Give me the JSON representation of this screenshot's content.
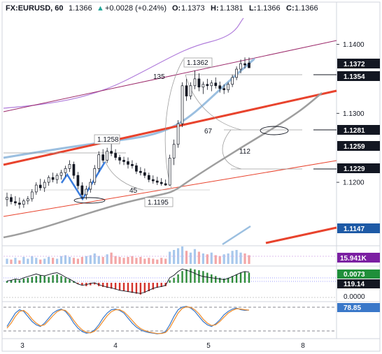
{
  "header": {
    "symbol": "FX:EURUSD, 60",
    "last": "1.1366",
    "change": "+0.0028 (+0.24%)",
    "open_label": "O:",
    "open": "1.1373",
    "high_label": "H:",
    "high": "1.1381",
    "low_label": "L:",
    "low": "1.1366",
    "close_label": "C:",
    "close": "1.1366"
  },
  "chart_data": [
    {
      "type": "candlestick",
      "panel": "price",
      "x_ticks": [
        "3",
        "4",
        "5",
        "8"
      ],
      "y_ticks": [
        1.12,
        1.13,
        1.14
      ],
      "ylim": [
        1.111,
        1.1442
      ],
      "candles": [
        {
          "o": 1.1175,
          "h": 1.1185,
          "l": 1.1165,
          "c": 1.1178
        },
        {
          "o": 1.1178,
          "h": 1.1183,
          "l": 1.1168,
          "c": 1.1172
        },
        {
          "o": 1.1172,
          "h": 1.118,
          "l": 1.1166,
          "c": 1.117
        },
        {
          "o": 1.117,
          "h": 1.1178,
          "l": 1.1162,
          "c": 1.1168
        },
        {
          "o": 1.1168,
          "h": 1.1176,
          "l": 1.1163,
          "c": 1.1173
        },
        {
          "o": 1.1173,
          "h": 1.118,
          "l": 1.1168,
          "c": 1.1176
        },
        {
          "o": 1.1176,
          "h": 1.119,
          "l": 1.1172,
          "c": 1.1186
        },
        {
          "o": 1.1186,
          "h": 1.12,
          "l": 1.1182,
          "c": 1.1196
        },
        {
          "o": 1.1196,
          "h": 1.1205,
          "l": 1.1188,
          "c": 1.1192
        },
        {
          "o": 1.1192,
          "h": 1.1204,
          "l": 1.1186,
          "c": 1.12
        },
        {
          "o": 1.12,
          "h": 1.121,
          "l": 1.1195,
          "c": 1.1207
        },
        {
          "o": 1.1207,
          "h": 1.1214,
          "l": 1.12,
          "c": 1.1204
        },
        {
          "o": 1.1204,
          "h": 1.1213,
          "l": 1.1198,
          "c": 1.121
        },
        {
          "o": 1.121,
          "h": 1.1218,
          "l": 1.1204,
          "c": 1.1214
        },
        {
          "o": 1.1214,
          "h": 1.1224,
          "l": 1.1208,
          "c": 1.122
        },
        {
          "o": 1.122,
          "h": 1.1232,
          "l": 1.1215,
          "c": 1.1226
        },
        {
          "o": 1.1226,
          "h": 1.123,
          "l": 1.1205,
          "c": 1.121
        },
        {
          "o": 1.121,
          "h": 1.1215,
          "l": 1.119,
          "c": 1.1195
        },
        {
          "o": 1.1195,
          "h": 1.12,
          "l": 1.1176,
          "c": 1.1182
        },
        {
          "o": 1.1182,
          "h": 1.1195,
          "l": 1.1175,
          "c": 1.119
        },
        {
          "o": 1.119,
          "h": 1.1205,
          "l": 1.1185,
          "c": 1.12
        },
        {
          "o": 1.12,
          "h": 1.1225,
          "l": 1.1196,
          "c": 1.122
        },
        {
          "o": 1.122,
          "h": 1.1245,
          "l": 1.1215,
          "c": 1.124
        },
        {
          "o": 1.124,
          "h": 1.1248,
          "l": 1.1228,
          "c": 1.1232
        },
        {
          "o": 1.1232,
          "h": 1.125,
          "l": 1.1228,
          "c": 1.1245
        },
        {
          "o": 1.1245,
          "h": 1.1258,
          "l": 1.1238,
          "c": 1.1242
        },
        {
          "o": 1.1242,
          "h": 1.1248,
          "l": 1.1232,
          "c": 1.1236
        },
        {
          "o": 1.1236,
          "h": 1.124,
          "l": 1.1226,
          "c": 1.1232
        },
        {
          "o": 1.1232,
          "h": 1.1237,
          "l": 1.1225,
          "c": 1.123
        },
        {
          "o": 1.123,
          "h": 1.1236,
          "l": 1.122,
          "c": 1.1226
        },
        {
          "o": 1.1226,
          "h": 1.1232,
          "l": 1.122,
          "c": 1.1224
        },
        {
          "o": 1.1224,
          "h": 1.1228,
          "l": 1.1212,
          "c": 1.1216
        },
        {
          "o": 1.1216,
          "h": 1.1222,
          "l": 1.121,
          "c": 1.1214
        },
        {
          "o": 1.1214,
          "h": 1.122,
          "l": 1.1206,
          "c": 1.121
        },
        {
          "o": 1.121,
          "h": 1.1214,
          "l": 1.12,
          "c": 1.1204
        },
        {
          "o": 1.1204,
          "h": 1.121,
          "l": 1.1198,
          "c": 1.1202
        },
        {
          "o": 1.1202,
          "h": 1.1208,
          "l": 1.1196,
          "c": 1.12
        },
        {
          "o": 1.12,
          "h": 1.1206,
          "l": 1.1195,
          "c": 1.1198
        },
        {
          "o": 1.1198,
          "h": 1.1204,
          "l": 1.1195,
          "c": 1.1196
        },
        {
          "o": 1.1196,
          "h": 1.124,
          "l": 1.1195,
          "c": 1.1235
        },
        {
          "o": 1.1235,
          "h": 1.1262,
          "l": 1.1225,
          "c": 1.1255
        },
        {
          "o": 1.1255,
          "h": 1.129,
          "l": 1.125,
          "c": 1.1285
        },
        {
          "o": 1.1285,
          "h": 1.1345,
          "l": 1.128,
          "c": 1.134
        },
        {
          "o": 1.134,
          "h": 1.135,
          "l": 1.1318,
          "c": 1.1325
        },
        {
          "o": 1.1325,
          "h": 1.1345,
          "l": 1.132,
          "c": 1.134
        },
        {
          "o": 1.134,
          "h": 1.1362,
          "l": 1.1335,
          "c": 1.135
        },
        {
          "o": 1.135,
          "h": 1.1358,
          "l": 1.1332,
          "c": 1.1338
        },
        {
          "o": 1.1338,
          "h": 1.1346,
          "l": 1.1328,
          "c": 1.1342
        },
        {
          "o": 1.1342,
          "h": 1.135,
          "l": 1.1334,
          "c": 1.134
        },
        {
          "o": 1.134,
          "h": 1.1348,
          "l": 1.1332,
          "c": 1.1344
        },
        {
          "o": 1.1344,
          "h": 1.1352,
          "l": 1.1336,
          "c": 1.134
        },
        {
          "o": 1.134,
          "h": 1.1346,
          "l": 1.133,
          "c": 1.1336
        },
        {
          "o": 1.1336,
          "h": 1.1342,
          "l": 1.1328,
          "c": 1.1334
        },
        {
          "o": 1.1334,
          "h": 1.1345,
          "l": 1.133,
          "c": 1.1342
        },
        {
          "o": 1.1342,
          "h": 1.1356,
          "l": 1.1338,
          "c": 1.1352
        },
        {
          "o": 1.1352,
          "h": 1.1368,
          "l": 1.1348,
          "c": 1.1364
        },
        {
          "o": 1.1364,
          "h": 1.1378,
          "l": 1.1358,
          "c": 1.1372
        },
        {
          "o": 1.1372,
          "h": 1.1381,
          "l": 1.1365,
          "c": 1.137
        },
        {
          "o": 1.1373,
          "h": 1.1381,
          "l": 1.1366,
          "c": 1.1366
        }
      ],
      "price_labels": [
        {
          "text": "1.1372",
          "color": "#131722"
        },
        {
          "text": "1.1354",
          "color": "#131722"
        },
        {
          "text": "1.1281",
          "color": "#131722"
        },
        {
          "text": "1.1259",
          "color": "#131722"
        },
        {
          "text": "1.1229",
          "color": "#131722"
        },
        {
          "text": "1.1147",
          "color": "#1e5aa6"
        }
      ],
      "annotations": {
        "high_1": "1.1258",
        "high_2": "1.1362",
        "low_1": "1.1195",
        "fib_135": "135",
        "fib_67": "67",
        "fib_112": "112",
        "fib_45": "45"
      }
    },
    {
      "type": "bar",
      "panel": "volume",
      "value_label": "15.941K",
      "values": [
        6,
        5,
        7,
        4,
        8,
        6,
        9,
        7,
        5,
        6,
        8,
        7,
        6,
        9,
        10,
        8,
        7,
        6,
        8,
        9,
        10,
        12,
        9,
        8,
        11,
        13,
        9,
        8,
        7,
        8,
        9,
        7,
        8,
        6,
        7,
        6,
        5,
        7,
        6,
        14,
        16,
        18,
        20,
        15,
        13,
        17,
        14,
        12,
        11,
        13,
        10,
        9,
        11,
        12,
        15,
        16,
        13,
        12,
        10
      ],
      "rising": [
        true,
        false,
        true,
        false,
        true,
        true,
        true,
        true,
        false,
        true,
        true,
        false,
        true,
        true,
        true,
        true,
        false,
        false,
        false,
        true,
        true,
        true,
        true,
        false,
        true,
        false,
        false,
        false,
        false,
        false,
        false,
        false,
        false,
        false,
        false,
        false,
        false,
        false,
        false,
        true,
        true,
        true,
        true,
        false,
        true,
        true,
        false,
        true,
        false,
        true,
        false,
        false,
        true,
        true,
        true,
        true,
        true,
        false,
        false
      ]
    },
    {
      "type": "histogram",
      "panel": "oscillator",
      "labels": [
        "0.0073",
        "119.14",
        "0.0000"
      ],
      "values": [
        2,
        3,
        4,
        3,
        5,
        6,
        7,
        8,
        9,
        8,
        7,
        9,
        10,
        8,
        6,
        4,
        2,
        -1,
        -3,
        -4,
        -3,
        -2,
        -4,
        -5,
        -6,
        -7,
        -8,
        -9,
        -10,
        -11,
        -12,
        -13,
        -14,
        -12,
        -10,
        -8,
        -6,
        -5,
        -4,
        3,
        6,
        10,
        14,
        16,
        17,
        16,
        15,
        14,
        12,
        10,
        8,
        6,
        5,
        6,
        8,
        10,
        12,
        13,
        12
      ],
      "line_values": [
        3,
        4,
        6,
        5,
        8,
        10,
        12,
        14,
        12,
        11,
        13,
        15,
        16,
        13,
        9,
        6,
        2,
        -2,
        -4,
        -3,
        -1,
        0,
        -3,
        -5,
        -7,
        -8,
        -10,
        -12,
        -13,
        -14,
        -15,
        -16,
        -17,
        -15,
        -12,
        -9,
        -7,
        -6,
        -4,
        8,
        12,
        18,
        22,
        20,
        18,
        15,
        12,
        10,
        9,
        8,
        7,
        6,
        5,
        7,
        10,
        13,
        16,
        18,
        17
      ]
    },
    {
      "type": "line",
      "panel": "stochastic",
      "label": "78.85",
      "series": [
        {
          "values": [
            30,
            50,
            70,
            80,
            75,
            60,
            45,
            35,
            30,
            40,
            55,
            70,
            78,
            82,
            75,
            60,
            40,
            25,
            15,
            10,
            12,
            20,
            35,
            55,
            70,
            80,
            82,
            78,
            70,
            55,
            40,
            28,
            20,
            15,
            12,
            10,
            8,
            10,
            15,
            35,
            60,
            80,
            88,
            90,
            85,
            75,
            60,
            45,
            35,
            30,
            38,
            50,
            65,
            75,
            82,
            85,
            80,
            78,
            79
          ]
        },
        {
          "values": [
            25,
            40,
            60,
            75,
            78,
            68,
            52,
            40,
            32,
            35,
            48,
            62,
            74,
            80,
            78,
            66,
            48,
            32,
            20,
            13,
            11,
            16,
            28,
            45,
            62,
            74,
            80,
            80,
            74,
            62,
            48,
            34,
            24,
            18,
            14,
            11,
            9,
            9,
            12,
            26,
            48,
            70,
            84,
            89,
            87,
            80,
            68,
            52,
            40,
            33,
            35,
            45,
            58,
            70,
            78,
            83,
            82,
            80,
            79
          ]
        }
      ]
    }
  ],
  "colors": {
    "up": "#26a69a",
    "down": "#ef5350",
    "candle": "#131722",
    "trend_red": "#e8432d",
    "light_blue": "#9bbfe0",
    "purple": "#b07cdb",
    "gray_ma": "#9e9e9e",
    "blue_line": "#3b7ddd",
    "histo_up": "#2e8b3a",
    "histo_down": "#d4322c",
    "stoch_blue": "#3a78c9",
    "stoch_orange": "#f08c2a",
    "badge_dark": "#131722",
    "badge_green": "#1f8f3a",
    "badge_purple": "#7b1fa2"
  }
}
